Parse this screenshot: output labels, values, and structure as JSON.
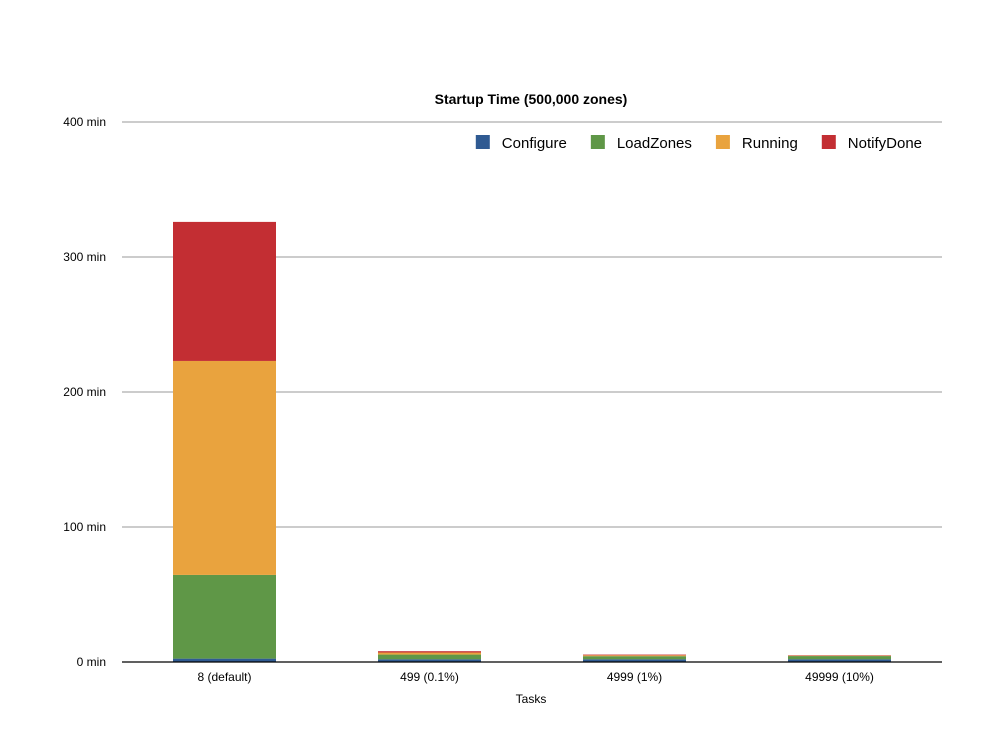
{
  "chart_data": {
    "type": "bar",
    "stacked": true,
    "title": "Startup Time (500,000 zones)",
    "xlabel": "Tasks",
    "ylabel": "",
    "ylim": [
      0,
      400
    ],
    "yticks": [
      0,
      100,
      200,
      300,
      400
    ],
    "ytick_suffix": " min",
    "grid": true,
    "legend_position": "top-right",
    "categories": [
      "8 (default)",
      "499 (0.1%)",
      "4999 (1%)",
      "49999 (10%)"
    ],
    "series": [
      {
        "name": "Configure",
        "color": "#2f5a92",
        "values": [
          2.5,
          2.0,
          2.0,
          2.0
        ]
      },
      {
        "name": "LoadZones",
        "color": "#5f9747",
        "values": [
          62.0,
          3.5,
          2.3,
          2.4
        ]
      },
      {
        "name": "Running",
        "color": "#e9a33e",
        "values": [
          158.5,
          1.5,
          0.7,
          0.3
        ]
      },
      {
        "name": "NotifyDone",
        "color": "#c32e33",
        "values": [
          103.0,
          1.0,
          0.5,
          0.3
        ]
      }
    ]
  }
}
